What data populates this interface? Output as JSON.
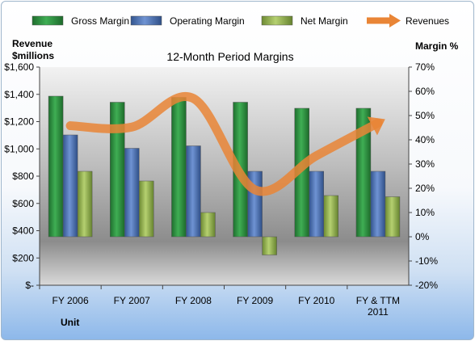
{
  "chart_data": {
    "type": "bar",
    "title": "12-Month Period Margins",
    "xlabel": "Unit",
    "ylabel": [
      "Revenue",
      "$millions"
    ],
    "y2label": "Margin %",
    "categories": [
      [
        "FY 2006"
      ],
      [
        "FY 2007"
      ],
      [
        "FY 2008"
      ],
      [
        "FY 2009"
      ],
      [
        "FY 2010"
      ],
      [
        "FY & TTM",
        "2011"
      ]
    ],
    "series": [
      {
        "name": "Gross Margin",
        "type": "bar",
        "axis": "right",
        "color": "#2e8b3e",
        "values": [
          58,
          55.5,
          57.5,
          55.5,
          53,
          53
        ]
      },
      {
        "name": "Operating Margin",
        "type": "bar",
        "axis": "right",
        "color": "#4a6fb5",
        "values": [
          42,
          36.5,
          37.5,
          27,
          27,
          27
        ]
      },
      {
        "name": "Net Margin",
        "type": "bar",
        "axis": "right",
        "color": "#8fb04b",
        "values": [
          27,
          23,
          10,
          -7.5,
          17,
          16.5
        ]
      },
      {
        "name": "Revenues",
        "type": "line",
        "axis": "left",
        "color": "#e98536",
        "values": [
          1170,
          1160,
          1370,
          700,
          950,
          1190
        ]
      }
    ],
    "ylim": [
      0,
      1600
    ],
    "yticks": [
      "$-",
      "$200",
      "$400",
      "$600",
      "$800",
      "$1,000",
      "$1,200",
      "$1,400",
      "$1,600"
    ],
    "y2lim": [
      -20,
      70
    ],
    "y2ticks": [
      "-20%",
      "-10%",
      "0%",
      "10%",
      "20%",
      "30%",
      "40%",
      "50%",
      "60%",
      "70%"
    ],
    "grid": false,
    "legend_position": "top"
  }
}
